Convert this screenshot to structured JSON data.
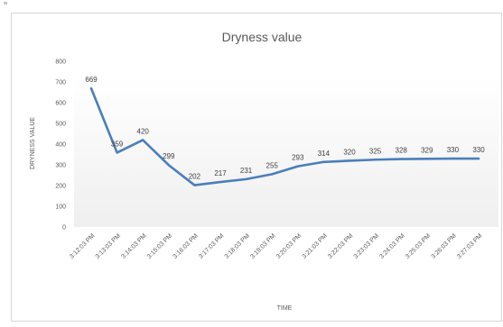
{
  "chart_data": {
    "type": "line",
    "title": "Dryness value",
    "xlabel": "TIME",
    "ylabel": "DRYNESS VALUE",
    "ylim": [
      0,
      800
    ],
    "yticks": [
      0,
      100,
      200,
      300,
      400,
      500,
      600,
      700,
      800
    ],
    "grid": false,
    "legend": "none",
    "categories": [
      "3:12:03 PM",
      "3:13:03 PM",
      "3:14:03 PM",
      "3:15:03 PM",
      "3:16:03 PM",
      "3:17:03 PM",
      "3:18:03 PM",
      "3:19:03 PM",
      "3:20:03 PM",
      "3:21:03 PM",
      "3:22:03 PM",
      "3:23:03 PM",
      "3:24:03 PM",
      "3:25:03 PM",
      "3:26:03 PM",
      "3:27:03 PM"
    ],
    "series": [
      {
        "values": [
          669,
          359,
          420,
          299,
          202,
          217,
          231,
          255,
          293,
          314,
          320,
          325,
          328,
          329,
          330,
          330
        ]
      }
    ],
    "colors": {
      "line": "#4a7ebb",
      "text": "#595959",
      "plot_shade": "#f4f4f4"
    }
  }
}
